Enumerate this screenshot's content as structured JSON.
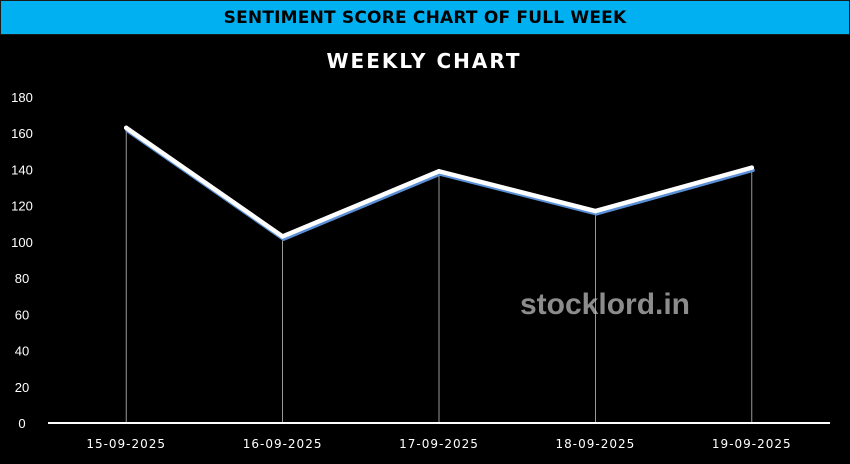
{
  "header": {
    "title": "SENTIMENT SCORE CHART OF FULL WEEK"
  },
  "watermark": "stocklord.in",
  "chart_data": {
    "type": "line",
    "title": "WEEKLY CHART",
    "categories": [
      "15-09-2025",
      "16-09-2025",
      "17-09-2025",
      "18-09-2025",
      "19-09-2025"
    ],
    "series": [
      {
        "values": [
          163,
          103,
          139,
          117,
          141
        ]
      }
    ],
    "ylim": [
      0,
      180
    ],
    "yticks": [
      0,
      20,
      40,
      60,
      80,
      100,
      120,
      140,
      160,
      180
    ],
    "drop_lines": true,
    "grid": false,
    "colors": {
      "line": "#ffffff",
      "shadow": "#5b8fd6",
      "background": "#000000",
      "axis": "#ffffff"
    }
  }
}
